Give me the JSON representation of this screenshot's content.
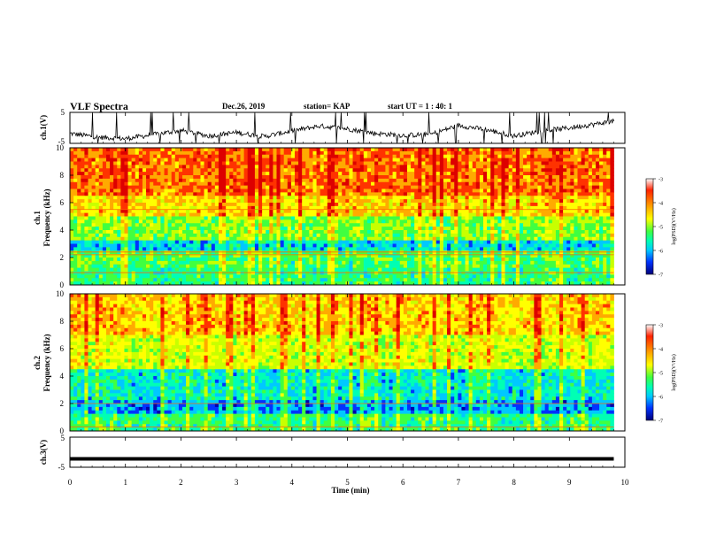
{
  "header": {
    "title": "VLF Spectra",
    "date": "Dec.26, 2019",
    "station": "station= KAP",
    "start": "start  UT =   1 : 40: 1"
  },
  "chart_data": [
    {
      "type": "line",
      "panel": "ch1-waveform",
      "ylabel": "ch.1(V)",
      "ylim": [
        -5,
        5
      ],
      "ytick_labels": [
        "5",
        "-5"
      ],
      "x": [
        0,
        0.5,
        1,
        1.5,
        2,
        2.5,
        3,
        3.5,
        4,
        4.5,
        5,
        5.5,
        6,
        6.5,
        7,
        7.5,
        8,
        8.5,
        9,
        9.5,
        9.8
      ],
      "y": [
        -1.8,
        -3.0,
        -3.5,
        -2.2,
        -0.8,
        -2.6,
        -1.5,
        -2.8,
        -1.0,
        0.6,
        -0.3,
        -1.8,
        -2.4,
        -2.1,
        0.8,
        -0.6,
        -2.6,
        -1.0,
        0.0,
        1.3,
        2.2
      ]
    },
    {
      "type": "heatmap",
      "panel": "ch1-spectrogram",
      "ylabel": "ch.1\nFrequency (kHz)",
      "ylim": [
        0,
        10
      ],
      "ytick_labels": [
        "0",
        "2",
        "4",
        "6",
        "8",
        "10"
      ],
      "colorbar": {
        "label": "log(PSD)(V²/Hz)",
        "ticks": [
          "-3",
          "-4",
          "-5",
          "-6",
          "-7"
        ],
        "range": [
          -7,
          -3
        ]
      }
    },
    {
      "type": "heatmap",
      "panel": "ch2-spectrogram",
      "ylabel": "ch.2\nFrequency (kHz)",
      "ylim": [
        0,
        10
      ],
      "ytick_labels": [
        "0",
        "2",
        "4",
        "6",
        "8",
        "10"
      ],
      "colorbar": {
        "label": "log(PSD)(V²/Hz)",
        "ticks": [
          "-3",
          "-4",
          "-5",
          "-6",
          "-7"
        ],
        "range": [
          -7,
          -3
        ]
      }
    },
    {
      "type": "line",
      "panel": "ch3-waveform",
      "ylabel": "ch.3(V)",
      "ylim": [
        -5,
        5
      ],
      "ytick_labels": [
        "5",
        "-5"
      ],
      "x": [
        0,
        9.8
      ],
      "y": [
        -2.2,
        -2.2
      ]
    }
  ],
  "xaxis": {
    "label": "Time (min)",
    "range": [
      0,
      10
    ],
    "tick_labels": [
      "0",
      "1",
      "2",
      "3",
      "4",
      "5",
      "6",
      "7",
      "8",
      "9",
      "10"
    ]
  },
  "colors": {
    "colormap": [
      "#0000aa",
      "#0033ff",
      "#00c8ff",
      "#00ffb4",
      "#40ff40",
      "#c8ff00",
      "#ffff00",
      "#ffaa00",
      "#ff3300",
      "#dd0000",
      "#ffffff"
    ],
    "trace": "#000000",
    "background": "#ffffff"
  }
}
